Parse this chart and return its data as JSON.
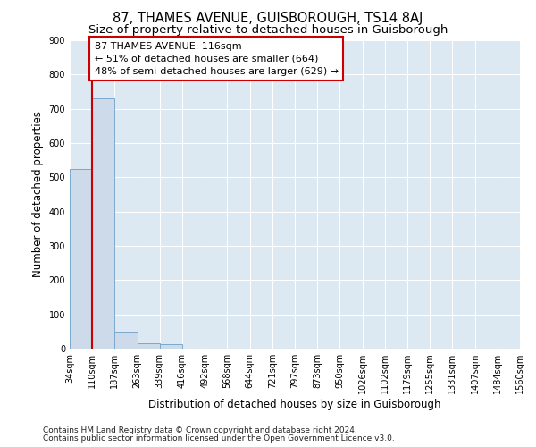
{
  "title": "87, THAMES AVENUE, GUISBOROUGH, TS14 8AJ",
  "subtitle": "Size of property relative to detached houses in Guisborough",
  "xlabel": "Distribution of detached houses by size in Guisborough",
  "ylabel": "Number of detached properties",
  "footnote1": "Contains HM Land Registry data © Crown copyright and database right 2024.",
  "footnote2": "Contains public sector information licensed under the Open Government Licence v3.0.",
  "bin_labels": [
    "34sqm",
    "110sqm",
    "187sqm",
    "263sqm",
    "339sqm",
    "416sqm",
    "492sqm",
    "568sqm",
    "644sqm",
    "721sqm",
    "797sqm",
    "873sqm",
    "950sqm",
    "1026sqm",
    "1102sqm",
    "1179sqm",
    "1255sqm",
    "1331sqm",
    "1407sqm",
    "1484sqm",
    "1560sqm"
  ],
  "bar_heights": [
    525,
    730,
    50,
    15,
    12,
    0,
    0,
    0,
    0,
    0,
    0,
    0,
    0,
    0,
    0,
    0,
    0,
    0,
    0,
    0
  ],
  "bar_color": "#ccdaea",
  "bar_edge_color": "#7aa8cc",
  "property_line_color": "#cc0000",
  "annotation_text": "87 THAMES AVENUE: 116sqm\n← 51% of detached houses are smaller (664)\n48% of semi-detached houses are larger (629) →",
  "annotation_box_color": "#ffffff",
  "annotation_box_edge": "#cc0000",
  "ylim": [
    0,
    900
  ],
  "yticks": [
    0,
    100,
    200,
    300,
    400,
    500,
    600,
    700,
    800,
    900
  ],
  "plot_bg_color": "#dce8f2",
  "title_fontsize": 10.5,
  "subtitle_fontsize": 9.5,
  "tick_fontsize": 7,
  "ylabel_fontsize": 8.5,
  "xlabel_fontsize": 8.5,
  "footnote_fontsize": 6.5
}
